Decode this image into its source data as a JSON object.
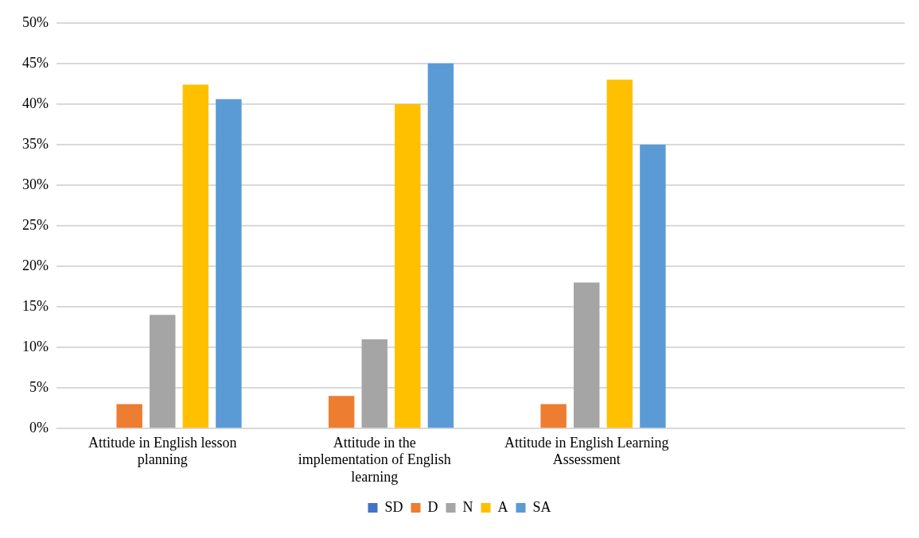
{
  "chart_data": {
    "type": "bar",
    "categories": [
      "Attitude in English lesson planning",
      "Attitude in the implementation of English learning",
      "Attitude in English Learning Assessment",
      null
    ],
    "series": [
      {
        "name": "SD",
        "color": "#4472c4",
        "values": [
          0,
          0,
          0,
          null
        ]
      },
      {
        "name": "D",
        "color": "#ed7d31",
        "values": [
          3,
          4,
          3,
          null
        ]
      },
      {
        "name": "N",
        "color": "#a5a5a5",
        "values": [
          14,
          11,
          18,
          null
        ]
      },
      {
        "name": "A",
        "color": "#ffc000",
        "values": [
          42.4,
          40,
          43,
          null
        ]
      },
      {
        "name": "SA",
        "color": "#5b9bd5",
        "values": [
          40.6,
          45,
          35,
          null
        ]
      }
    ],
    "ylim": [
      0,
      50
    ],
    "yticks": [
      {
        "value": 0,
        "label": "0%"
      },
      {
        "value": 5,
        "label": "5%"
      },
      {
        "value": 10,
        "label": "10%"
      },
      {
        "value": 15,
        "label": "15%"
      },
      {
        "value": 20,
        "label": "20%"
      },
      {
        "value": 25,
        "label": "25%"
      },
      {
        "value": 30,
        "label": "30%"
      },
      {
        "value": 35,
        "label": "35%"
      },
      {
        "value": 40,
        "label": "40%"
      },
      {
        "value": 45,
        "label": "45%"
      },
      {
        "value": 50,
        "label": "50%"
      }
    ],
    "grid": "y",
    "legend": "bottom"
  }
}
